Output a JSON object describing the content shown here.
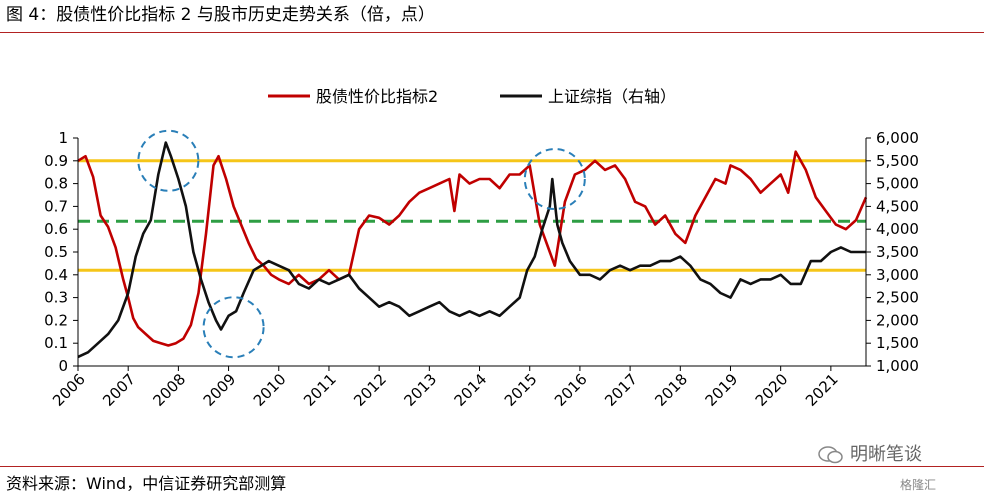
{
  "title": "图 4：股债性价比指标 2 与股市历史走势关系（倍，点）",
  "source": "资料来源：Wind，中信证券研究部测算",
  "watermark": "明晰笔谈",
  "badge": "格隆汇",
  "chart_data": {
    "type": "line",
    "title": "图 4：股债性价比指标 2 与股市历史走势关系（倍，点）",
    "legend_position": "top-center",
    "x_range": [
      2006,
      2021.7
    ],
    "x_ticks": [
      "2006",
      "2007",
      "2008",
      "2009",
      "2010",
      "2011",
      "2012",
      "2013",
      "2014",
      "2015",
      "2016",
      "2017",
      "2018",
      "2019",
      "2020",
      "2021"
    ],
    "y_left": {
      "range": [
        0,
        1
      ],
      "ticks": [
        "0",
        "0.1",
        "0.2",
        "0.3",
        "0.4",
        "0.5",
        "0.6",
        "0.7",
        "0.8",
        "0.9",
        "1"
      ]
    },
    "y_right": {
      "range": [
        1000,
        6000
      ],
      "ticks": [
        "1,000",
        "1,500",
        "2,000",
        "2,500",
        "3,000",
        "3,500",
        "4,000",
        "4,500",
        "5,000",
        "5,500",
        "6,000"
      ]
    },
    "reference_lines": [
      {
        "axis": "left",
        "value": 0.9,
        "style": "solid",
        "color": "#f5c518"
      },
      {
        "axis": "left",
        "value": 0.42,
        "style": "solid",
        "color": "#f5c518"
      },
      {
        "axis": "left",
        "value": 0.635,
        "style": "dashed",
        "color": "#2e9e44"
      }
    ],
    "highlight_circles": [
      {
        "x": 2007.8,
        "y_left": 0.9
      },
      {
        "x": 2009.1,
        "y_left": 0.17
      },
      {
        "x": 2015.5,
        "y_left": 0.82
      }
    ],
    "series": [
      {
        "name": "股债性价比指标2",
        "axis": "left",
        "color": "#c00000",
        "x": [
          2006.0,
          2006.15,
          2006.3,
          2006.45,
          2006.6,
          2006.75,
          2006.9,
          2007.0,
          2007.1,
          2007.2,
          2007.35,
          2007.5,
          2007.65,
          2007.8,
          2007.95,
          2008.1,
          2008.25,
          2008.4,
          2008.55,
          2008.7,
          2008.8,
          2008.95,
          2009.1,
          2009.25,
          2009.4,
          2009.55,
          2009.7,
          2009.85,
          2010.0,
          2010.2,
          2010.4,
          2010.6,
          2010.8,
          2011.0,
          2011.2,
          2011.4,
          2011.6,
          2011.8,
          2012.0,
          2012.2,
          2012.4,
          2012.6,
          2012.8,
          2013.0,
          2013.2,
          2013.4,
          2013.5,
          2013.6,
          2013.8,
          2014.0,
          2014.2,
          2014.4,
          2014.6,
          2014.8,
          2015.0,
          2015.2,
          2015.4,
          2015.5,
          2015.7,
          2015.9,
          2016.1,
          2016.3,
          2016.5,
          2016.7,
          2016.9,
          2017.1,
          2017.3,
          2017.5,
          2017.7,
          2017.9,
          2018.1,
          2018.3,
          2018.5,
          2018.7,
          2018.9,
          2019.0,
          2019.2,
          2019.4,
          2019.6,
          2019.8,
          2020.0,
          2020.15,
          2020.3,
          2020.5,
          2020.7,
          2020.9,
          2021.1,
          2021.3,
          2021.5,
          2021.7
        ],
        "values": [
          0.9,
          0.92,
          0.83,
          0.66,
          0.61,
          0.52,
          0.38,
          0.3,
          0.21,
          0.17,
          0.14,
          0.11,
          0.1,
          0.09,
          0.1,
          0.12,
          0.18,
          0.32,
          0.58,
          0.88,
          0.92,
          0.82,
          0.7,
          0.62,
          0.54,
          0.47,
          0.44,
          0.4,
          0.38,
          0.36,
          0.4,
          0.36,
          0.38,
          0.42,
          0.38,
          0.4,
          0.6,
          0.66,
          0.65,
          0.62,
          0.66,
          0.72,
          0.76,
          0.78,
          0.8,
          0.82,
          0.68,
          0.84,
          0.8,
          0.82,
          0.82,
          0.78,
          0.84,
          0.84,
          0.88,
          0.62,
          0.5,
          0.44,
          0.72,
          0.84,
          0.86,
          0.9,
          0.86,
          0.88,
          0.82,
          0.72,
          0.7,
          0.62,
          0.66,
          0.58,
          0.54,
          0.66,
          0.74,
          0.82,
          0.8,
          0.88,
          0.86,
          0.82,
          0.76,
          0.8,
          0.84,
          0.76,
          0.94,
          0.86,
          0.74,
          0.68,
          0.62,
          0.6,
          0.64,
          0.74
        ]
      },
      {
        "name": "上证综指（右轴）",
        "axis": "right",
        "color": "#111111",
        "x": [
          2006.0,
          2006.2,
          2006.4,
          2006.6,
          2006.8,
          2007.0,
          2007.15,
          2007.3,
          2007.45,
          2007.6,
          2007.75,
          2007.85,
          2008.0,
          2008.15,
          2008.3,
          2008.45,
          2008.6,
          2008.75,
          2008.85,
          2009.0,
          2009.15,
          2009.3,
          2009.5,
          2009.65,
          2009.8,
          2010.0,
          2010.2,
          2010.4,
          2010.6,
          2010.8,
          2011.0,
          2011.2,
          2011.4,
          2011.6,
          2011.8,
          2012.0,
          2012.2,
          2012.4,
          2012.6,
          2012.8,
          2013.0,
          2013.2,
          2013.4,
          2013.6,
          2013.8,
          2014.0,
          2014.2,
          2014.4,
          2014.6,
          2014.8,
          2014.95,
          2015.1,
          2015.25,
          2015.4,
          2015.45,
          2015.55,
          2015.65,
          2015.8,
          2016.0,
          2016.2,
          2016.4,
          2016.6,
          2016.8,
          2017.0,
          2017.2,
          2017.4,
          2017.6,
          2017.8,
          2018.0,
          2018.2,
          2018.4,
          2018.6,
          2018.8,
          2019.0,
          2019.2,
          2019.4,
          2019.6,
          2019.8,
          2020.0,
          2020.2,
          2020.4,
          2020.6,
          2020.8,
          2021.0,
          2021.2,
          2021.4,
          2021.7
        ],
        "values": [
          1200,
          1300,
          1500,
          1700,
          2000,
          2600,
          3400,
          3900,
          4200,
          5200,
          5900,
          5600,
          5100,
          4500,
          3500,
          2900,
          2400,
          2000,
          1800,
          2100,
          2200,
          2600,
          3100,
          3200,
          3300,
          3200,
          3100,
          2800,
          2700,
          2900,
          2800,
          2900,
          3000,
          2700,
          2500,
          2300,
          2400,
          2300,
          2100,
          2200,
          2300,
          2400,
          2200,
          2100,
          2200,
          2100,
          2200,
          2100,
          2300,
          2500,
          3100,
          3400,
          4000,
          4500,
          5100,
          4100,
          3700,
          3300,
          3000,
          3000,
          2900,
          3100,
          3200,
          3100,
          3200,
          3200,
          3300,
          3300,
          3400,
          3200,
          2900,
          2800,
          2600,
          2500,
          2900,
          2800,
          2900,
          2900,
          3000,
          2800,
          2800,
          3300,
          3300,
          3500,
          3600,
          3500,
          3500
        ]
      }
    ]
  }
}
